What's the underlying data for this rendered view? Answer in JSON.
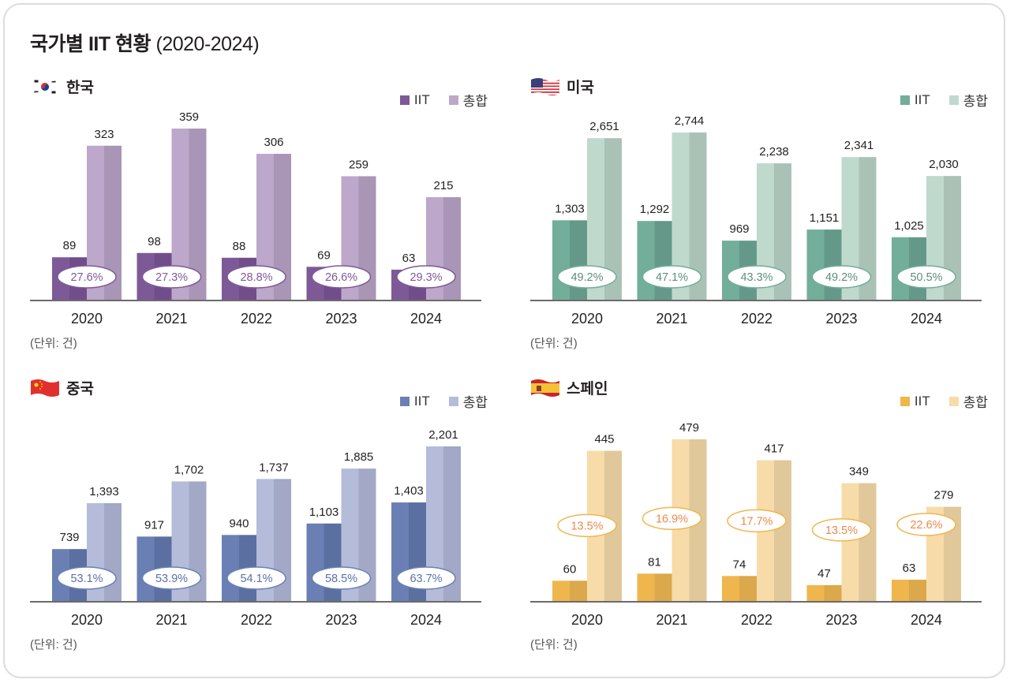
{
  "title": "국가별 IIT 현황",
  "title_years": "(2020-2024)",
  "unit_label": "(단위: 건)",
  "legend": {
    "iit": "IIT",
    "total": "총합"
  },
  "chart_data": [
    {
      "type": "bar",
      "country": "한국",
      "flag": "korea-flag-icon",
      "categories": [
        "2020",
        "2021",
        "2022",
        "2023",
        "2024"
      ],
      "series": [
        {
          "name": "IIT",
          "values": [
            89,
            98,
            88,
            69,
            63
          ]
        },
        {
          "name": "총합",
          "values": [
            323,
            359,
            306,
            259,
            215
          ]
        }
      ],
      "ratio_labels": [
        "27.6%",
        "27.3%",
        "28.8%",
        "26.6%",
        "29.3%"
      ],
      "colors": {
        "iit": "#7d5a97",
        "iit_dark": "#724d8b",
        "total": "#bda7ca",
        "total_dark": "#a995b5",
        "ratio_text": "#7d5a97",
        "ratio_border": "#7d5a97"
      },
      "ylim": [
        0,
        359
      ],
      "xlabel": "",
      "ylabel": "",
      "grid": false,
      "legend_position": "top-right"
    },
    {
      "type": "bar",
      "country": "미국",
      "flag": "usa-flag-icon",
      "categories": [
        "2020",
        "2021",
        "2022",
        "2023",
        "2024"
      ],
      "series": [
        {
          "name": "IIT",
          "values": [
            1303,
            1292,
            969,
            1151,
            1025
          ]
        },
        {
          "name": "총합",
          "values": [
            2651,
            2744,
            2238,
            2341,
            2030
          ]
        }
      ],
      "ratio_labels": [
        "49.2%",
        "47.1%",
        "43.3%",
        "49.2%",
        "50.5%"
      ],
      "colors": {
        "iit": "#72ae99",
        "iit_dark": "#64998a",
        "total": "#c0d9cd",
        "total_dark": "#aac2b6",
        "ratio_text": "#5a8f7c",
        "ratio_border": "#72ae99"
      },
      "ylim": [
        0,
        2744
      ],
      "xlabel": "",
      "ylabel": "",
      "grid": false,
      "legend_position": "top-right"
    },
    {
      "type": "bar",
      "country": "중국",
      "flag": "china-flag-icon",
      "categories": [
        "2020",
        "2021",
        "2022",
        "2023",
        "2024"
      ],
      "series": [
        {
          "name": "IIT",
          "values": [
            739,
            917,
            940,
            1103,
            1403
          ]
        },
        {
          "name": "총합",
          "values": [
            1393,
            1702,
            1737,
            1885,
            2201
          ]
        }
      ],
      "ratio_labels": [
        "53.1%",
        "53.9%",
        "54.1%",
        "58.5%",
        "63.7%"
      ],
      "colors": {
        "iit": "#6a80b4",
        "iit_dark": "#5b70a0",
        "total": "#b4bcda",
        "total_dark": "#a2a8c6",
        "ratio_text": "#5b70a8",
        "ratio_border": "#6a80b4"
      },
      "ylim": [
        0,
        2201
      ],
      "xlabel": "",
      "ylabel": "",
      "grid": false,
      "legend_position": "top-right"
    },
    {
      "type": "bar",
      "country": "스페인",
      "flag": "spain-flag-icon",
      "categories": [
        "2020",
        "2021",
        "2022",
        "2023",
        "2024"
      ],
      "series": [
        {
          "name": "IIT",
          "values": [
            60,
            81,
            74,
            47,
            63
          ]
        },
        {
          "name": "총합",
          "values": [
            445,
            479,
            417,
            349,
            279
          ]
        }
      ],
      "ratio_labels": [
        "13.5%",
        "16.9%",
        "17.7%",
        "13.5%",
        "22.6%"
      ],
      "colors": {
        "iit": "#efb64e",
        "iit_dark": "#dba84b",
        "total": "#f7dca9",
        "total_dark": "#e1c89a",
        "ratio_text": "#ee8a4a",
        "ratio_border": "#efb64e"
      },
      "ylim": [
        0,
        479
      ],
      "xlabel": "",
      "ylabel": "",
      "grid": false,
      "legend_position": "top-right"
    }
  ]
}
